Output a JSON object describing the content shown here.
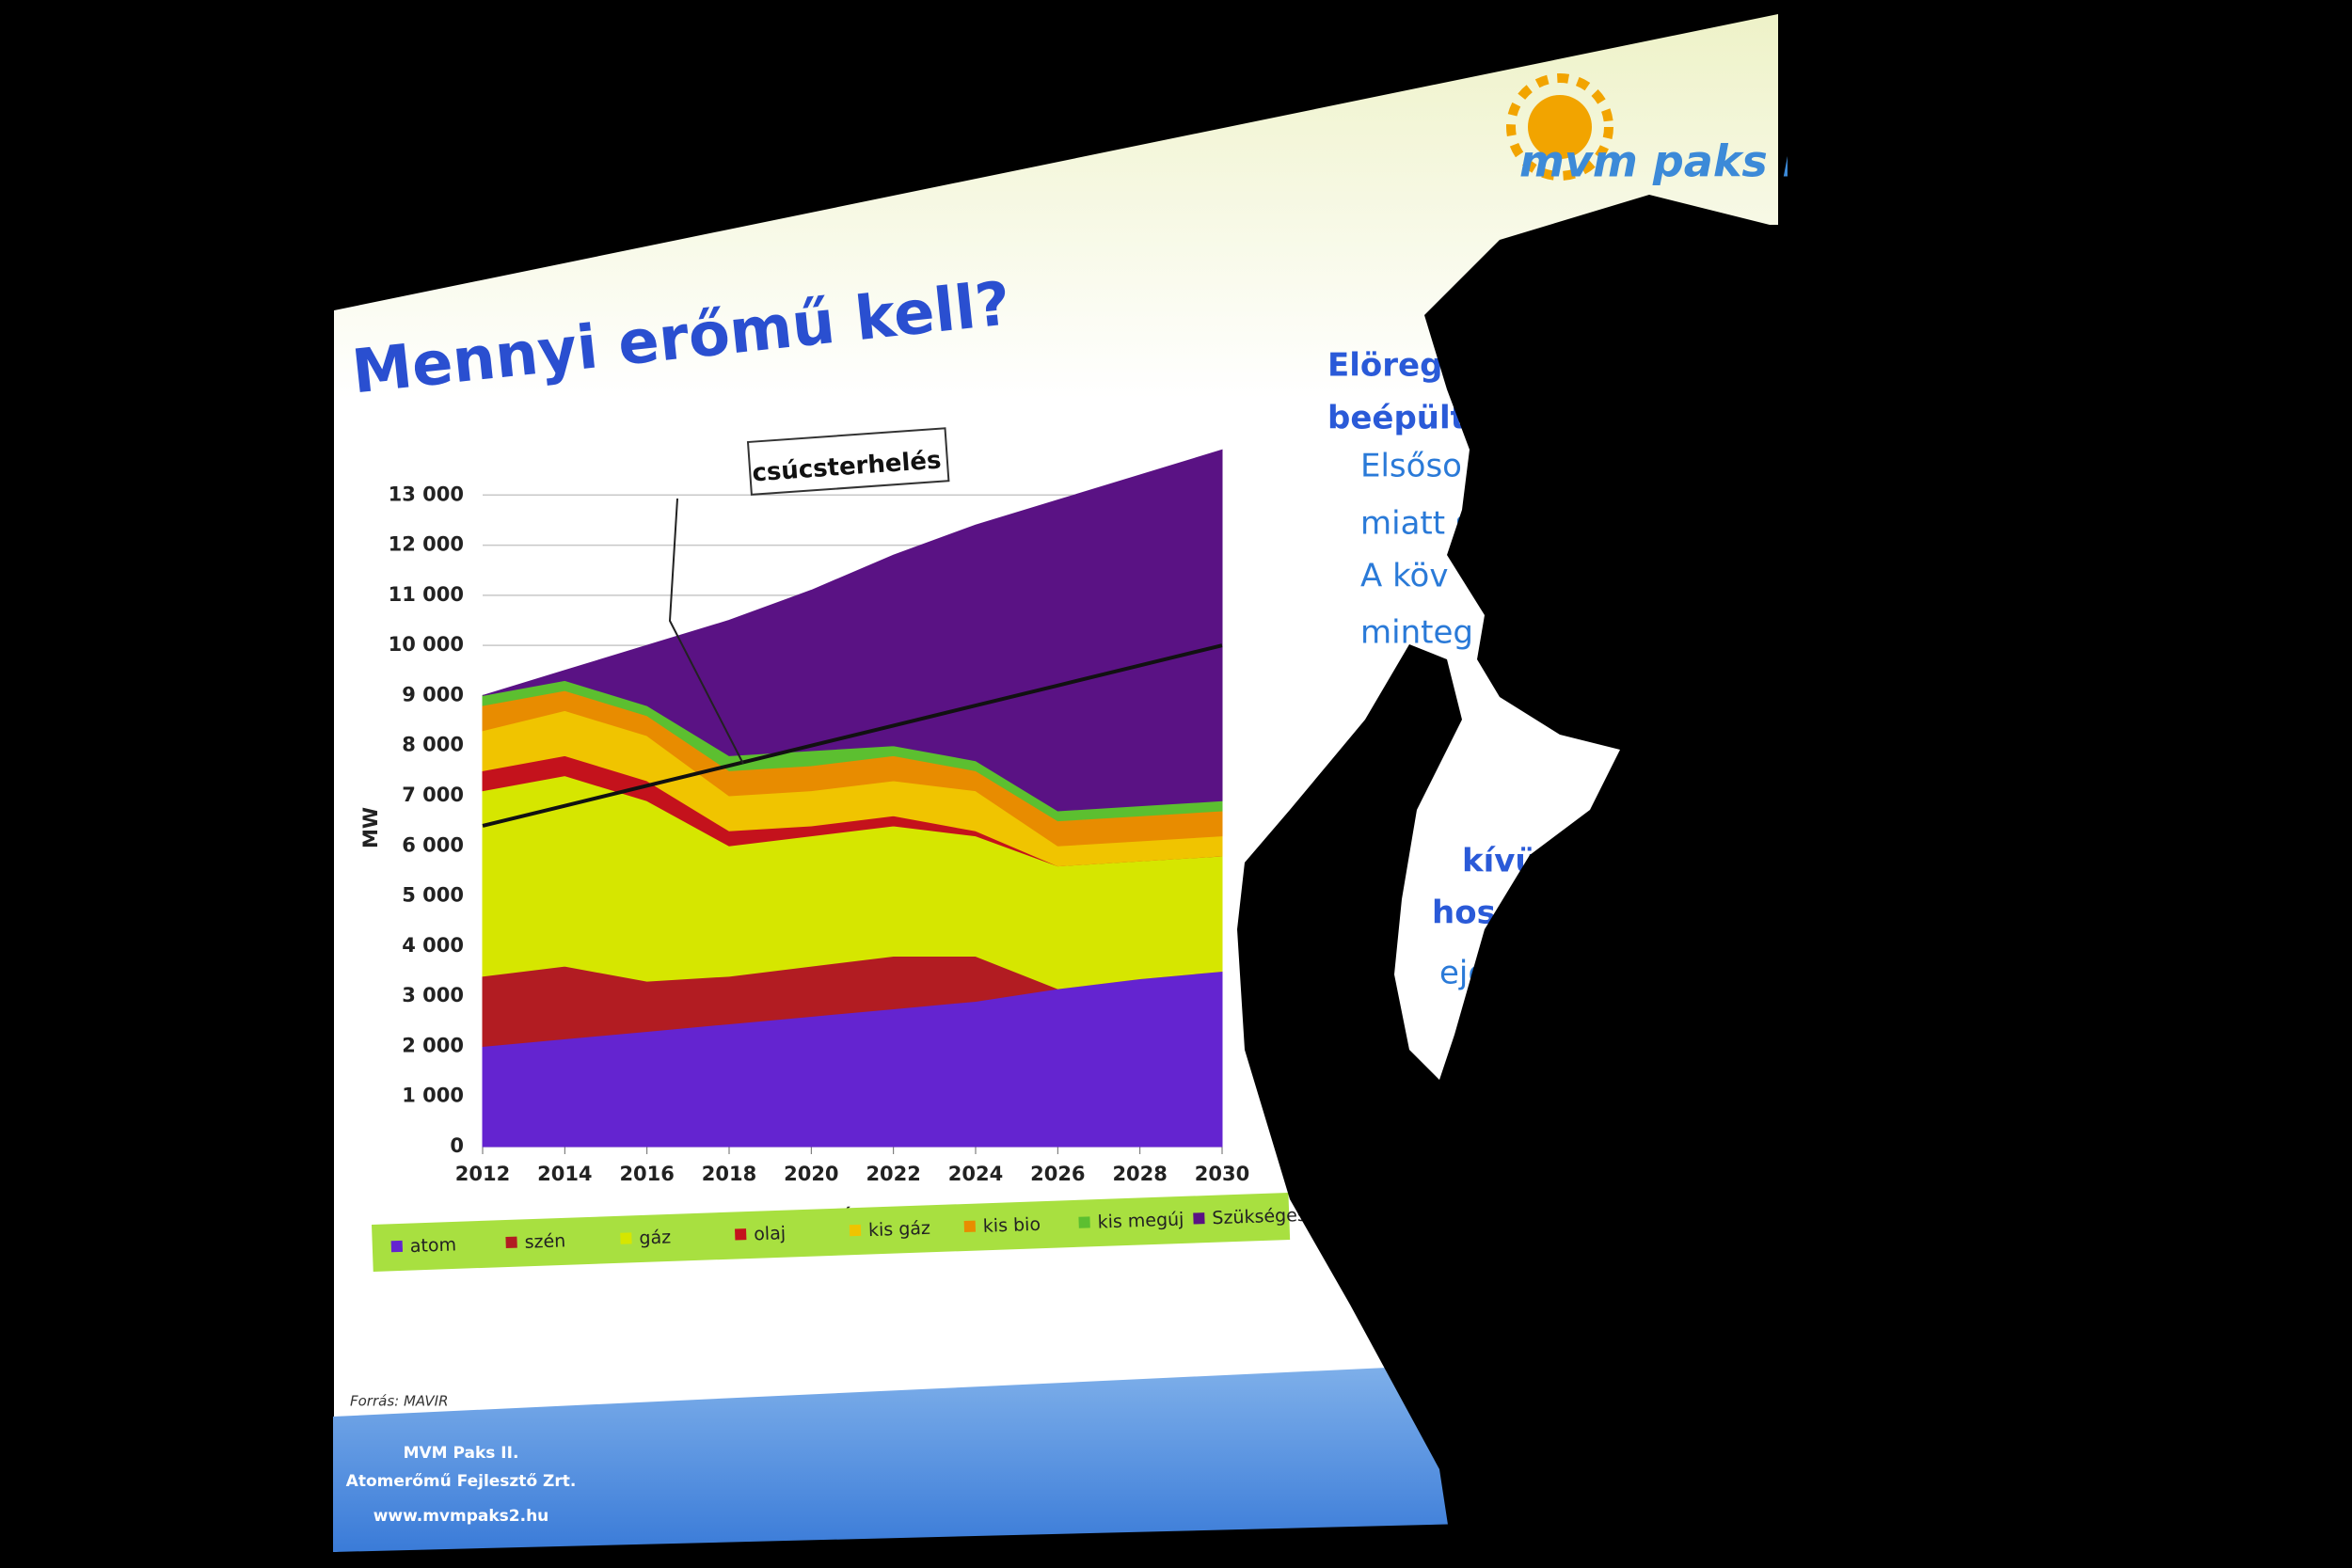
{
  "header": {
    "logo": "mvm paks II"
  },
  "side_text": [
    "Elöreg",
    "beépült",
    "Elsőso",
    "miatt s",
    "A köv",
    "minteg",
    "kívül:",
    "hosene",
    "ejelk"
  ],
  "source": "Forrás: MAVIR",
  "footer": {
    "company": "MVM Paks II.",
    "subtitle": "Atomerőmű Fejlesztő Zrt.",
    "url": "www.mvmpaks2.hu"
  },
  "chart_data": {
    "type": "stacked-area",
    "title": "Mennyi erőmű kell?",
    "x": [
      2012,
      2014,
      2016,
      2018,
      2020,
      2022,
      2024,
      2026,
      2028,
      2030
    ],
    "xlim": [
      2012,
      2030
    ],
    "xticks": [
      2012,
      2014,
      2016,
      2018,
      2020,
      2022,
      2024,
      2026,
      2028,
      2030
    ],
    "ylim": [
      0,
      14000
    ],
    "yticks": [
      0,
      {
        "value": 1000,
        "label": "1 000"
      },
      {
        "value": 2000,
        "label": "2 000"
      },
      {
        "value": 3000,
        "label": "3 000"
      },
      {
        "value": 4000,
        "label": "4 000"
      },
      {
        "value": 5000,
        "label": "5 000"
      },
      {
        "value": 6000,
        "label": "6 000"
      },
      {
        "value": 7000,
        "label": "7 000"
      },
      {
        "value": 8000,
        "label": "8 000"
      },
      {
        "value": 9000,
        "label": "9 000"
      },
      {
        "value": 10000,
        "label": "10 000"
      },
      {
        "value": 11000,
        "label": "11 000"
      },
      {
        "value": 12000,
        "label": "12 000"
      },
      {
        "value": 13000,
        "label": "13 000"
      }
    ],
    "xlabel": "év",
    "ylabel": "MW",
    "grid": true,
    "series": [
      {
        "name": "atom",
        "color": "#6424d0",
        "values": [
          2000,
          2150,
          2300,
          2450,
          2600,
          2750,
          2900,
          3150,
          3350,
          3500
        ]
      },
      {
        "name": "szén",
        "color": "#b21c22",
        "values": [
          1400,
          1450,
          1000,
          950,
          1000,
          1050,
          900,
          0,
          0,
          0
        ]
      },
      {
        "name": "gáz",
        "color": "#d6e600",
        "values": [
          3700,
          3800,
          3600,
          2600,
          2600,
          2600,
          2400,
          2450,
          2350,
          2300
        ]
      },
      {
        "name": "olaj",
        "color": "#c4121c",
        "values": [
          400,
          400,
          400,
          300,
          200,
          200,
          100,
          0,
          0,
          0
        ]
      },
      {
        "name": "kis gáz",
        "color": "#f0c400",
        "values": [
          800,
          900,
          900,
          700,
          700,
          700,
          800,
          400,
          400,
          400
        ]
      },
      {
        "name": "kis bio",
        "color": "#e88c00",
        "values": [
          500,
          400,
          400,
          500,
          500,
          500,
          400,
          500,
          500,
          500
        ]
      },
      {
        "name": "kis megúj",
        "color": "#5cbf30",
        "values": [
          200,
          200,
          200,
          300,
          300,
          200,
          200,
          200,
          200,
          200
        ]
      },
      {
        "name": "Szükséges új",
        "color": "#5a1284",
        "values": [
          0,
          200,
          1200,
          2700,
          3200,
          3800,
          4700,
          6200,
          6600,
          7000
        ]
      }
    ],
    "line": {
      "color": "#111111",
      "values": [
        6400,
        6800,
        7200,
        7600,
        8000,
        8400,
        8800,
        9200,
        9600,
        10000
      ]
    },
    "annotation": "csúcsterhelés"
  }
}
